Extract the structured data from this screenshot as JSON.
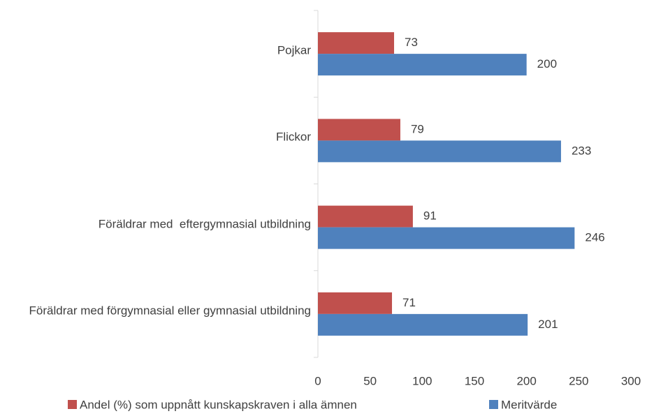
{
  "chart_data": {
    "type": "hbar",
    "categories": [
      "Pojkar",
      "Flickor",
      "Föräldrar med  eftergymnasial utbildning",
      "Föräldrar med förgymnasial eller gymnasial utbildning"
    ],
    "series": [
      {
        "name": "Andel (%) som uppnått kunskapskraven i alla ämnen",
        "color": "#c0504d",
        "values": [
          73,
          79,
          91,
          71
        ]
      },
      {
        "name": "Meritvärde",
        "color": "#4f81bd",
        "values": [
          200,
          233,
          246,
          201
        ]
      }
    ],
    "xlim": [
      0,
      300
    ],
    "xticks": [
      0,
      50,
      100,
      150,
      200,
      250,
      300
    ],
    "legend": "bottom"
  }
}
